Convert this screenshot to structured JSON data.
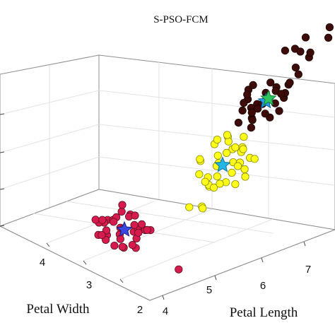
{
  "chart_data": {
    "type": "scatter",
    "title": "S-PSO-FCM",
    "xlabel": "Petal Width",
    "ylabel": "Petal Length",
    "zlabel": "",
    "x_ticks": [
      "2",
      "3",
      "4"
    ],
    "y_ticks": [
      "4",
      "5",
      "6",
      "7"
    ],
    "grid": true,
    "series": [
      {
        "color": "#d81b4e",
        "edge": "#5a0f1f",
        "marker": "circle",
        "points": [
          [
            3.4,
            4.2,
            3.1
          ],
          [
            3.5,
            4.3,
            3.2
          ],
          [
            3.6,
            4.1,
            3.0
          ],
          [
            3.2,
            4.4,
            3.3
          ],
          [
            3.3,
            4.0,
            2.9
          ],
          [
            3.7,
            4.2,
            3.4
          ],
          [
            3.1,
            4.3,
            3.1
          ],
          [
            3.8,
            4.4,
            3.2
          ],
          [
            3.4,
            4.5,
            3.0
          ],
          [
            3.5,
            4.0,
            3.3
          ],
          [
            3.0,
            4.2,
            2.9
          ],
          [
            3.9,
            4.3,
            3.1
          ],
          [
            3.6,
            4.6,
            3.4
          ],
          [
            3.3,
            4.5,
            3.2
          ],
          [
            3.2,
            4.1,
            3.5
          ],
          [
            3.5,
            4.3,
            2.8
          ],
          [
            3.4,
            4.4,
            3.6
          ],
          [
            3.7,
            4.0,
            3.0
          ],
          [
            3.1,
            4.6,
            3.2
          ],
          [
            3.8,
            4.1,
            3.3
          ],
          [
            3.6,
            4.3,
            3.5
          ],
          [
            3.3,
            4.2,
            2.7
          ],
          [
            3.5,
            4.6,
            3.1
          ],
          [
            3.9,
            4.5,
            3.0
          ],
          [
            3.0,
            4.4,
            3.4
          ],
          [
            3.4,
            3.9,
            3.1
          ],
          [
            4.0,
            4.2,
            3.2
          ],
          [
            3.2,
            4.3,
            2.8
          ],
          [
            3.7,
            4.5,
            3.5
          ],
          [
            3.6,
            4.7,
            3.3
          ],
          [
            3.5,
            3.9,
            3.2
          ],
          [
            3.3,
            4.7,
            3.0
          ],
          [
            3.8,
            4.6,
            3.6
          ],
          [
            3.1,
            4.0,
            3.0
          ],
          [
            3.4,
            4.6,
            2.9
          ],
          [
            3.6,
            4.0,
            3.6
          ],
          [
            3.2,
            4.5,
            3.4
          ],
          [
            2.4,
            4.6,
            2.3
          ]
        ]
      },
      {
        "color": "#ffff1a",
        "edge": "#8a8a00",
        "marker": "circle",
        "points": [
          [
            2.6,
            5.6,
            4.8
          ],
          [
            2.8,
            5.8,
            5.0
          ],
          [
            2.7,
            6.0,
            4.6
          ],
          [
            2.9,
            5.5,
            5.2
          ],
          [
            2.5,
            5.9,
            4.4
          ],
          [
            2.8,
            6.1,
            5.3
          ],
          [
            2.6,
            5.4,
            4.9
          ],
          [
            2.9,
            6.2,
            4.7
          ],
          [
            2.7,
            5.7,
            5.4
          ],
          [
            2.5,
            6.0,
            5.1
          ],
          [
            2.8,
            5.6,
            4.3
          ],
          [
            2.6,
            6.3,
            5.0
          ],
          [
            2.9,
            5.8,
            5.6
          ],
          [
            2.7,
            5.5,
            4.5
          ],
          [
            2.5,
            6.1,
            4.8
          ],
          [
            2.8,
            6.0,
            5.8
          ],
          [
            2.6,
            5.8,
            5.5
          ],
          [
            2.9,
            5.6,
            4.4
          ],
          [
            2.7,
            6.2,
            5.2
          ],
          [
            2.5,
            5.7,
            4.6
          ],
          [
            2.8,
            5.4,
            5.4
          ],
          [
            2.6,
            6.4,
            4.9
          ],
          [
            2.9,
            6.1,
            5.5
          ],
          [
            2.7,
            5.3,
            5.0
          ],
          [
            2.5,
            5.9,
            5.7
          ],
          [
            2.8,
            5.7,
            4.2
          ],
          [
            2.6,
            6.2,
            4.4
          ],
          [
            2.9,
            6.4,
            5.1
          ],
          [
            2.7,
            5.9,
            6.0
          ],
          [
            2.5,
            5.5,
            5.3
          ],
          [
            2.4,
            5.1,
            4.2
          ],
          [
            2.5,
            5.2,
            4.0
          ],
          [
            2.6,
            5.0,
            4.1
          ],
          [
            3.0,
            6.5,
            4.9
          ],
          [
            3.1,
            6.6,
            5.2
          ],
          [
            2.9,
            6.3,
            4.5
          ],
          [
            3.0,
            6.0,
            4.0
          ],
          [
            2.6,
            5.6,
            6.1
          ]
        ]
      },
      {
        "color": "#3d0b08",
        "edge": "#1a0403",
        "marker": "circle",
        "points": [
          [
            2.9,
            6.6,
            6.0
          ],
          [
            3.0,
            6.8,
            6.3
          ],
          [
            2.8,
            6.5,
            6.5
          ],
          [
            3.1,
            7.0,
            6.1
          ],
          [
            2.9,
            6.9,
            6.7
          ],
          [
            3.0,
            6.4,
            5.9
          ],
          [
            2.8,
            7.2,
            6.4
          ],
          [
            3.1,
            6.7,
            6.8
          ],
          [
            2.9,
            7.1,
            6.2
          ],
          [
            3.0,
            6.6,
            6.6
          ],
          [
            2.8,
            6.9,
            5.9
          ],
          [
            3.1,
            7.3,
            6.5
          ],
          [
            2.9,
            6.5,
            6.9
          ],
          [
            3.0,
            7.4,
            6.3
          ],
          [
            2.8,
            6.8,
            6.1
          ],
          [
            3.1,
            6.6,
            6.4
          ],
          [
            2.9,
            7.0,
            7.0
          ],
          [
            3.0,
            6.7,
            5.8
          ],
          [
            2.8,
            7.3,
            6.8
          ],
          [
            3.1,
            6.9,
            6.0
          ],
          [
            2.9,
            6.4,
            6.4
          ],
          [
            3.0,
            7.5,
            6.6
          ],
          [
            2.8,
            7.1,
            6.0
          ],
          [
            3.1,
            6.8,
            6.9
          ],
          [
            2.9,
            6.6,
            6.2
          ],
          [
            3.0,
            7.2,
            6.5
          ],
          [
            2.8,
            6.5,
            5.8
          ],
          [
            3.1,
            7.4,
            6.2
          ],
          [
            2.9,
            7.6,
            6.9
          ],
          [
            3.0,
            7.0,
            6.4
          ],
          [
            3.2,
            7.8,
            6.8
          ],
          [
            3.1,
            8.0,
            7.1
          ],
          [
            3.3,
            8.2,
            7.0
          ],
          [
            3.2,
            8.5,
            7.4
          ],
          [
            3.4,
            8.7,
            7.5
          ],
          [
            3.5,
            8.9,
            7.3
          ],
          [
            3.1,
            7.7,
            7.6
          ],
          [
            3.0,
            7.4,
            7.8
          ],
          [
            3.3,
            8.1,
            7.6
          ],
          [
            3.2,
            7.9,
            7.3
          ]
        ]
      }
    ],
    "centers": [
      {
        "color": "#3a48e0",
        "edge": "#1a1f80",
        "marker": "star",
        "point": [
          3.4,
          4.3,
          3.2
        ]
      },
      {
        "color": "#20b6e6",
        "edge": "#10708f",
        "marker": "star",
        "point": [
          2.7,
          5.8,
          5.0
        ]
      },
      {
        "color": "#1fa0e8",
        "edge": "#0f5f8f",
        "marker": "star",
        "point": [
          2.9,
          6.9,
          6.4
        ]
      },
      {
        "color": "#2ec460",
        "edge": "#1a7a3a",
        "marker": "star",
        "point": [
          2.95,
          7.0,
          6.4
        ]
      }
    ]
  }
}
